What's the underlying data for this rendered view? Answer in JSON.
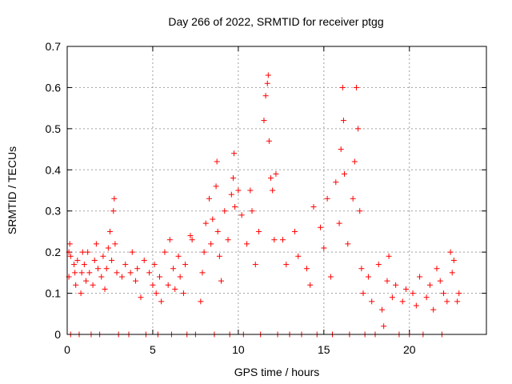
{
  "chart_data": {
    "type": "scatter",
    "title": "Day 266 of 2022, SRMTID for receiver ptgg",
    "xlabel": "GPS time / hours",
    "ylabel": "SRMTID / TECUs",
    "xlim": [
      0,
      24.5
    ],
    "ylim": [
      0,
      0.7
    ],
    "xticks": [
      0,
      5,
      10,
      15,
      20
    ],
    "yticks": [
      0,
      0.1,
      0.2,
      0.3,
      0.4,
      0.5,
      0.6,
      0.7
    ],
    "grid": true,
    "marker": "plus",
    "color": "#ff0000",
    "series": [
      {
        "name": "SRMTID",
        "points": [
          [
            0.1,
            0.14
          ],
          [
            0.1,
            0.2
          ],
          [
            0.15,
            0.22
          ],
          [
            0.2,
            0.19
          ],
          [
            0.2,
            0.0
          ],
          [
            0.4,
            0.17
          ],
          [
            0.45,
            0.15
          ],
          [
            0.5,
            0.12
          ],
          [
            0.6,
            0.18
          ],
          [
            0.7,
            0.0
          ],
          [
            0.8,
            0.1
          ],
          [
            0.85,
            0.15
          ],
          [
            0.9,
            0.2
          ],
          [
            1.0,
            0.17
          ],
          [
            1.1,
            0.13
          ],
          [
            1.2,
            0.2
          ],
          [
            1.3,
            0.15
          ],
          [
            1.4,
            0.0
          ],
          [
            1.5,
            0.12
          ],
          [
            1.6,
            0.18
          ],
          [
            1.7,
            0.22
          ],
          [
            1.8,
            0.16
          ],
          [
            1.9,
            0.0
          ],
          [
            2.0,
            0.14
          ],
          [
            2.1,
            0.19
          ],
          [
            2.2,
            0.11
          ],
          [
            2.3,
            0.16
          ],
          [
            2.4,
            0.21
          ],
          [
            2.5,
            0.25
          ],
          [
            2.6,
            0.18
          ],
          [
            2.7,
            0.3
          ],
          [
            2.75,
            0.33
          ],
          [
            2.8,
            0.22
          ],
          [
            2.9,
            0.15
          ],
          [
            3.0,
            0.0
          ],
          [
            3.2,
            0.14
          ],
          [
            3.4,
            0.17
          ],
          [
            3.6,
            0.0
          ],
          [
            3.7,
            0.15
          ],
          [
            3.8,
            0.2
          ],
          [
            4.0,
            0.13
          ],
          [
            4.1,
            0.16
          ],
          [
            4.3,
            0.09
          ],
          [
            4.5,
            0.18
          ],
          [
            4.6,
            0.0
          ],
          [
            4.8,
            0.15
          ],
          [
            5.0,
            0.12
          ],
          [
            5.1,
            0.17
          ],
          [
            5.2,
            0.1
          ],
          [
            5.3,
            0.0
          ],
          [
            5.4,
            0.14
          ],
          [
            5.5,
            0.08
          ],
          [
            5.7,
            0.2
          ],
          [
            5.9,
            0.12
          ],
          [
            6.0,
            0.23
          ],
          [
            6.1,
            0.0
          ],
          [
            6.2,
            0.16
          ],
          [
            6.3,
            0.11
          ],
          [
            6.5,
            0.19
          ],
          [
            6.6,
            0.14
          ],
          [
            6.8,
            0.1
          ],
          [
            6.9,
            0.17
          ],
          [
            7.0,
            0.0
          ],
          [
            7.2,
            0.24
          ],
          [
            7.3,
            0.23
          ],
          [
            7.5,
            0.0
          ],
          [
            7.8,
            0.08
          ],
          [
            7.9,
            0.15
          ],
          [
            8.0,
            0.2
          ],
          [
            8.1,
            0.27
          ],
          [
            8.3,
            0.33
          ],
          [
            8.4,
            0.22
          ],
          [
            8.5,
            0.28
          ],
          [
            8.6,
            0.0
          ],
          [
            8.7,
            0.36
          ],
          [
            8.75,
            0.42
          ],
          [
            8.8,
            0.25
          ],
          [
            8.9,
            0.19
          ],
          [
            9.0,
            0.13
          ],
          [
            9.2,
            0.3
          ],
          [
            9.4,
            0.23
          ],
          [
            9.5,
            0.0
          ],
          [
            9.6,
            0.34
          ],
          [
            9.7,
            0.38
          ],
          [
            9.75,
            0.44
          ],
          [
            9.8,
            0.31
          ],
          [
            10.0,
            0.35
          ],
          [
            10.2,
            0.29
          ],
          [
            10.3,
            0.0
          ],
          [
            10.5,
            0.22
          ],
          [
            10.7,
            0.35
          ],
          [
            10.8,
            0.3
          ],
          [
            11.0,
            0.17
          ],
          [
            11.2,
            0.25
          ],
          [
            11.3,
            0.0
          ],
          [
            11.5,
            0.52
          ],
          [
            11.6,
            0.58
          ],
          [
            11.7,
            0.61
          ],
          [
            11.75,
            0.63
          ],
          [
            11.8,
            0.47
          ],
          [
            11.9,
            0.38
          ],
          [
            12.0,
            0.35
          ],
          [
            12.1,
            0.23
          ],
          [
            12.2,
            0.39
          ],
          [
            12.3,
            0.0
          ],
          [
            12.6,
            0.23
          ],
          [
            12.8,
            0.17
          ],
          [
            13.0,
            0.0
          ],
          [
            13.3,
            0.25
          ],
          [
            13.5,
            0.19
          ],
          [
            13.7,
            0.0
          ],
          [
            14.0,
            0.16
          ],
          [
            14.2,
            0.12
          ],
          [
            14.4,
            0.31
          ],
          [
            14.6,
            0.0
          ],
          [
            14.8,
            0.26
          ],
          [
            15.0,
            0.21
          ],
          [
            15.2,
            0.33
          ],
          [
            15.4,
            0.14
          ],
          [
            15.5,
            0.0
          ],
          [
            15.7,
            0.37
          ],
          [
            15.9,
            0.27
          ],
          [
            16.0,
            0.45
          ],
          [
            16.1,
            0.6
          ],
          [
            16.15,
            0.52
          ],
          [
            16.2,
            0.39
          ],
          [
            16.4,
            0.22
          ],
          [
            16.5,
            0.0
          ],
          [
            16.7,
            0.33
          ],
          [
            16.8,
            0.42
          ],
          [
            16.9,
            0.6
          ],
          [
            17.0,
            0.5
          ],
          [
            17.1,
            0.3
          ],
          [
            17.2,
            0.16
          ],
          [
            17.3,
            0.1
          ],
          [
            17.4,
            0.0
          ],
          [
            17.6,
            0.14
          ],
          [
            17.8,
            0.08
          ],
          [
            18.0,
            0.0
          ],
          [
            18.2,
            0.17
          ],
          [
            18.4,
            0.06
          ],
          [
            18.5,
            0.02
          ],
          [
            18.7,
            0.13
          ],
          [
            18.8,
            0.19
          ],
          [
            19.0,
            0.09
          ],
          [
            19.2,
            0.12
          ],
          [
            19.4,
            0.0
          ],
          [
            19.6,
            0.08
          ],
          [
            19.8,
            0.11
          ],
          [
            20.0,
            0.0
          ],
          [
            20.2,
            0.1
          ],
          [
            20.4,
            0.07
          ],
          [
            20.6,
            0.14
          ],
          [
            20.8,
            0.0
          ],
          [
            21.0,
            0.09
          ],
          [
            21.2,
            0.12
          ],
          [
            21.4,
            0.06
          ],
          [
            21.6,
            0.16
          ],
          [
            21.8,
            0.13
          ],
          [
            21.9,
            0.0
          ],
          [
            22.0,
            0.1
          ],
          [
            22.2,
            0.08
          ],
          [
            22.4,
            0.2
          ],
          [
            22.5,
            0.15
          ],
          [
            22.6,
            0.18
          ],
          [
            22.8,
            0.08
          ],
          [
            22.9,
            0.1
          ]
        ]
      }
    ]
  }
}
